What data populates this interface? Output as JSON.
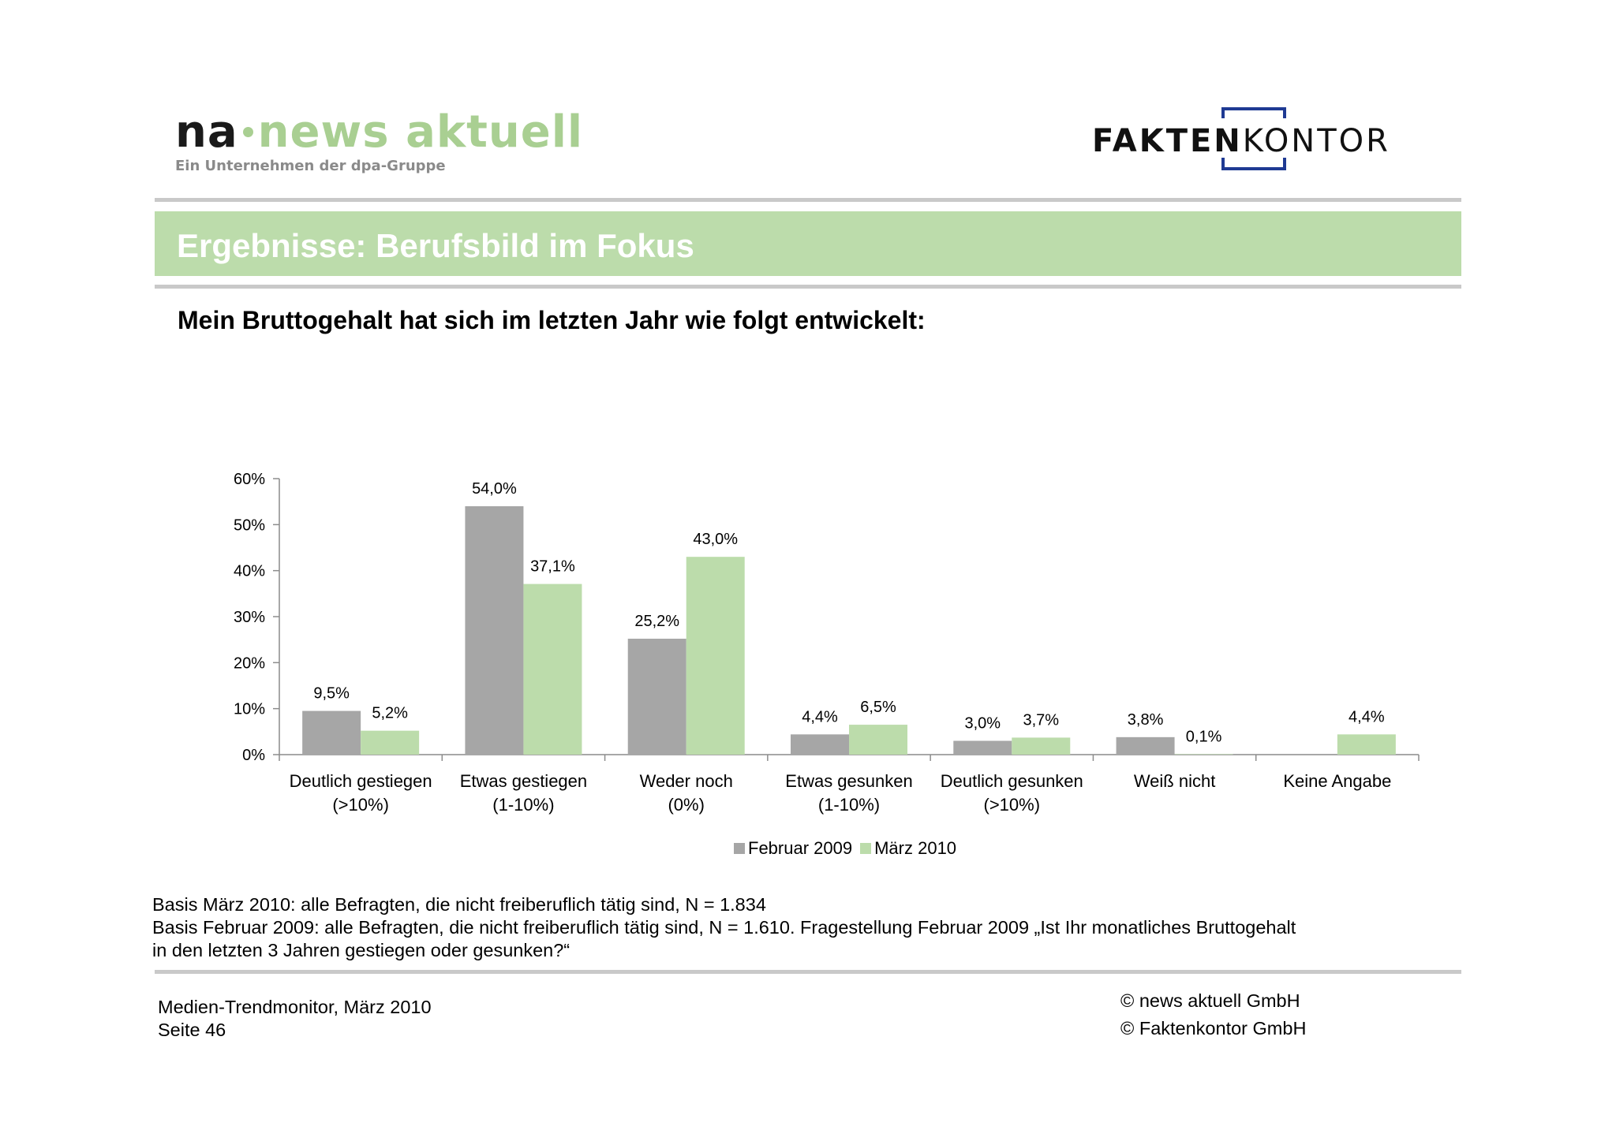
{
  "header": {
    "logo_left": {
      "prefix": "na",
      "word": "news aktuell",
      "tagline": "Ein Unternehmen der dpa-Gruppe"
    },
    "logo_right": {
      "bold": "FAKTEN",
      "light": "KONTOR"
    }
  },
  "title": "Ergebnisse: Berufsbild im Fokus",
  "question": "Mein Bruttogehalt hat sich im letzten Jahr wie folgt entwickelt:",
  "colors": {
    "accent_green": "#bcdcab",
    "series_gray": "#a6a6a6",
    "series_green": "#bcdcab",
    "rule_gray": "#c9c9c9",
    "logo_blue": "#1f3a93"
  },
  "chart_data": {
    "type": "bar",
    "categories": [
      [
        "Deutlich gestiegen",
        "(>10%)"
      ],
      [
        "Etwas gestiegen",
        "(1-10%)"
      ],
      [
        "Weder noch",
        "(0%)"
      ],
      [
        "Etwas gesunken",
        "(1-10%)"
      ],
      [
        "Deutlich gesunken",
        "(>10%)"
      ],
      [
        "Weiß nicht",
        ""
      ],
      [
        "Keine Angabe",
        ""
      ]
    ],
    "series": [
      {
        "name": "Februar 2009",
        "color": "#a6a6a6",
        "values": [
          9.5,
          54.0,
          25.2,
          4.4,
          3.0,
          3.8,
          null
        ],
        "labels": [
          "9,5%",
          "54,0%",
          "25,2%",
          "4,4%",
          "3,0%",
          "3,8%",
          ""
        ]
      },
      {
        "name": "März 2010",
        "color": "#bcdcab",
        "values": [
          5.2,
          37.1,
          43.0,
          6.5,
          3.7,
          0.1,
          4.4
        ],
        "labels": [
          "5,2%",
          "37,1%",
          "43,0%",
          "6,5%",
          "3,7%",
          "0,1%",
          "4,4%"
        ]
      }
    ],
    "yticks": [
      "0%",
      "10%",
      "20%",
      "30%",
      "40%",
      "50%",
      "60%"
    ],
    "ylim": [
      0,
      60
    ],
    "grid": false,
    "legend_position": "bottom-center"
  },
  "notes": {
    "line1": "Basis März 2010: alle Befragten, die nicht freiberuflich tätig sind, N = 1.834",
    "line2": "Basis Februar 2009: alle Befragten, die nicht freiberuflich tätig sind, N = 1.610. Fragestellung Februar 2009 „Ist Ihr monatliches Bruttogehalt",
    "line3": "in den letzten 3 Jahren gestiegen oder gesunken?“"
  },
  "footer": {
    "study": "Medien-Trendmonitor, März 2010",
    "page": "Seite 46",
    "copyright1": "© news aktuell GmbH",
    "copyright2": "© Faktenkontor GmbH"
  }
}
